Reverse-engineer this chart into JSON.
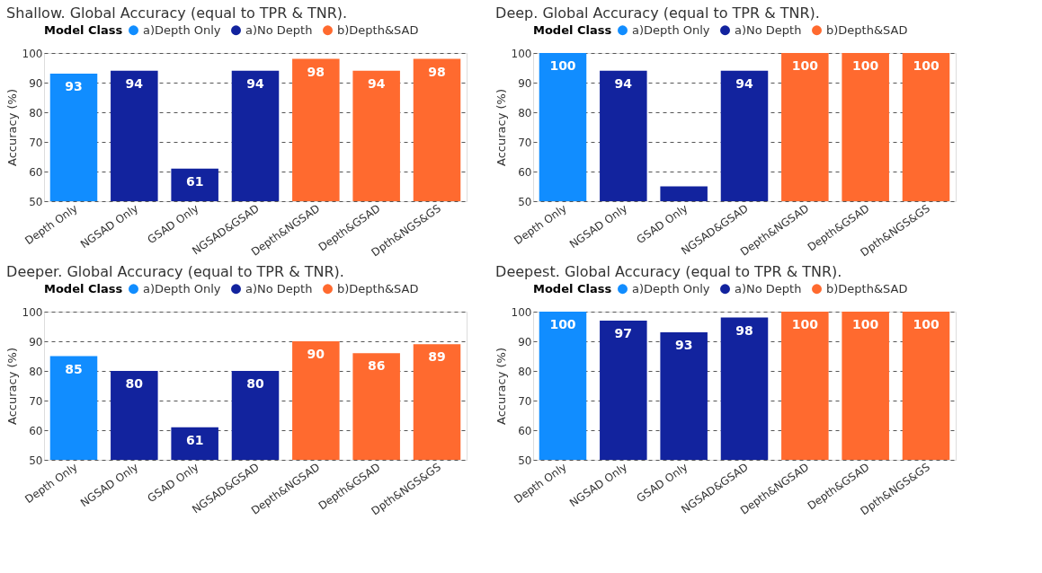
{
  "chart_data": [
    {
      "type": "bar",
      "title": "Shallow. Global Accuracy (equal to TPR & TNR).",
      "ylabel": "Accuracy (%)",
      "legend_title": "Model Class",
      "legend": "top left",
      "grid": "y",
      "categories": [
        "Depth Only",
        "NGSAD Only",
        "GSAD Only",
        "NGSAD&GSAD",
        "Depth&NGSAD",
        "Depth&GSAD",
        "Dpth&NGS&GS"
      ],
      "ylim": [
        50,
        100
      ],
      "yticks": [
        50,
        60,
        70,
        80,
        90,
        100
      ],
      "series": [
        {
          "name": "a)Depth Only",
          "color": "#118dff",
          "values": [
            93,
            null,
            null,
            null,
            null,
            null,
            null
          ],
          "value_labels": [
            "93",
            null,
            null,
            null,
            null,
            null,
            null
          ]
        },
        {
          "name": "a)No Depth",
          "color": "#12239e",
          "values": [
            null,
            94,
            61,
            94,
            null,
            null,
            null
          ],
          "value_labels": [
            null,
            "94",
            "61",
            "94",
            null,
            null,
            null
          ]
        },
        {
          "name": "b)Depth&SAD",
          "color": "#ff6a2f",
          "values": [
            null,
            null,
            null,
            null,
            98,
            94,
            98
          ],
          "value_labels": [
            null,
            null,
            null,
            null,
            "98",
            "94",
            "98"
          ]
        }
      ]
    },
    {
      "type": "bar",
      "title": "Deep. Global Accuracy (equal to TPR & TNR).",
      "ylabel": "Accuracy (%)",
      "legend_title": "Model Class",
      "legend": "top left",
      "grid": "y",
      "categories": [
        "Depth Only",
        "NGSAD Only",
        "GSAD Only",
        "NGSAD&GSAD",
        "Depth&NGSAD",
        "Depth&GSAD",
        "Dpth&NGS&GS"
      ],
      "ylim": [
        50,
        100
      ],
      "yticks": [
        50,
        60,
        70,
        80,
        90,
        100
      ],
      "series": [
        {
          "name": "a)Depth Only",
          "color": "#118dff",
          "values": [
            100,
            null,
            null,
            null,
            null,
            null,
            null
          ],
          "value_labels": [
            "100",
            null,
            null,
            null,
            null,
            null,
            null
          ]
        },
        {
          "name": "a)No Depth",
          "color": "#12239e",
          "values": [
            null,
            94,
            55,
            94,
            null,
            null,
            null
          ],
          "value_labels": [
            null,
            "94",
            null,
            "94",
            null,
            null,
            null
          ]
        },
        {
          "name": "b)Depth&SAD",
          "color": "#ff6a2f",
          "values": [
            null,
            null,
            null,
            null,
            100,
            100,
            100
          ],
          "value_labels": [
            null,
            null,
            null,
            null,
            "100",
            "100",
            "100"
          ]
        }
      ]
    },
    {
      "type": "bar",
      "title": "Deeper. Global Accuracy (equal to TPR & TNR).",
      "ylabel": "Accuracy (%)",
      "legend_title": "Model Class",
      "legend": "top left",
      "grid": "y",
      "categories": [
        "Depth Only",
        "NGSAD Only",
        "GSAD Only",
        "NGSAD&GSAD",
        "Depth&NGSAD",
        "Depth&GSAD",
        "Dpth&NGS&GS"
      ],
      "ylim": [
        50,
        100
      ],
      "yticks": [
        50,
        60,
        70,
        80,
        90,
        100
      ],
      "series": [
        {
          "name": "a)Depth Only",
          "color": "#118dff",
          "values": [
            85,
            null,
            null,
            null,
            null,
            null,
            null
          ],
          "value_labels": [
            "85",
            null,
            null,
            null,
            null,
            null,
            null
          ]
        },
        {
          "name": "a)No Depth",
          "color": "#12239e",
          "values": [
            null,
            80,
            61,
            80,
            null,
            null,
            null
          ],
          "value_labels": [
            null,
            "80",
            "61",
            "80",
            null,
            null,
            null
          ]
        },
        {
          "name": "b)Depth&SAD",
          "color": "#ff6a2f",
          "values": [
            null,
            null,
            null,
            null,
            90,
            86,
            89
          ],
          "value_labels": [
            null,
            null,
            null,
            null,
            "90",
            "86",
            "89"
          ]
        }
      ]
    },
    {
      "type": "bar",
      "title": "Deepest. Global Accuracy (equal to TPR & TNR).",
      "ylabel": "Accuracy (%)",
      "legend_title": "Model Class",
      "legend": "top left",
      "grid": "y",
      "categories": [
        "Depth Only",
        "NGSAD Only",
        "GSAD Only",
        "NGSAD&GSAD",
        "Depth&NGSAD",
        "Depth&GSAD",
        "Dpth&NGS&GS"
      ],
      "ylim": [
        50,
        100
      ],
      "yticks": [
        50,
        60,
        70,
        80,
        90,
        100
      ],
      "series": [
        {
          "name": "a)Depth Only",
          "color": "#118dff",
          "values": [
            100,
            null,
            null,
            null,
            null,
            null,
            null
          ],
          "value_labels": [
            "100",
            null,
            null,
            null,
            null,
            null,
            null
          ]
        },
        {
          "name": "a)No Depth",
          "color": "#12239e",
          "values": [
            null,
            97,
            93,
            98,
            null,
            null,
            null
          ],
          "value_labels": [
            null,
            "97",
            "93",
            "98",
            null,
            null,
            null
          ]
        },
        {
          "name": "b)Depth&SAD",
          "color": "#ff6a2f",
          "values": [
            null,
            null,
            null,
            null,
            100,
            100,
            100
          ],
          "value_labels": [
            null,
            null,
            null,
            null,
            "100",
            "100",
            "100"
          ]
        }
      ]
    }
  ]
}
